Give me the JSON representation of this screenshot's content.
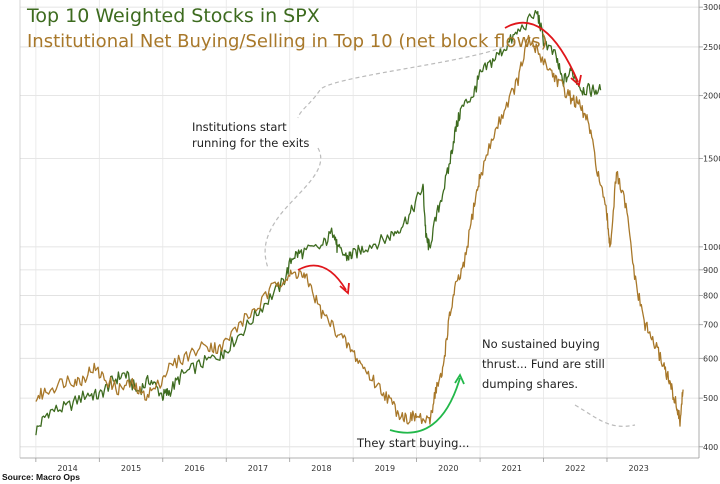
{
  "chart_data": {
    "type": "line",
    "title": "Top 10 Weighted Stocks in SPX",
    "subtitle": "Institutional Net Buying/Selling in Top 10 (net block flows)",
    "source": "Source: Macro Ops",
    "x_tick_labels": [
      "2014",
      "2015",
      "2016",
      "2017",
      "2018",
      "2019",
      "2020",
      "2021",
      "2022",
      "2023"
    ],
    "y_axis": {
      "scale": "log",
      "tick_labels": [
        "400",
        "500",
        "600",
        "700",
        "800",
        "900",
        "1000",
        "1500",
        "2000",
        "2500",
        "3000"
      ],
      "ylim": [
        380,
        3100
      ]
    },
    "series": [
      {
        "name": "Top 10 Weighted Stocks in SPX",
        "color": "#3d6b1f",
        "points": [
          [
            2014.0,
            430
          ],
          [
            2014.2,
            470
          ],
          [
            2014.5,
            480
          ],
          [
            2014.8,
            510
          ],
          [
            2015.0,
            505
          ],
          [
            2015.2,
            540
          ],
          [
            2015.4,
            560
          ],
          [
            2015.6,
            515
          ],
          [
            2015.8,
            545
          ],
          [
            2016.0,
            505
          ],
          [
            2016.1,
            515
          ],
          [
            2016.3,
            555
          ],
          [
            2016.6,
            585
          ],
          [
            2016.9,
            610
          ],
          [
            2017.0,
            625
          ],
          [
            2017.3,
            690
          ],
          [
            2017.6,
            770
          ],
          [
            2017.9,
            850
          ],
          [
            2018.05,
            960
          ],
          [
            2018.2,
            975
          ],
          [
            2018.5,
            1000
          ],
          [
            2018.7,
            1080
          ],
          [
            2018.75,
            990
          ],
          [
            2018.9,
            955
          ],
          [
            2019.0,
            965
          ],
          [
            2019.2,
            1000
          ],
          [
            2019.5,
            1035
          ],
          [
            2019.7,
            1080
          ],
          [
            2019.9,
            1160
          ],
          [
            2020.1,
            1320
          ],
          [
            2020.15,
            1040
          ],
          [
            2020.2,
            1000
          ],
          [
            2020.35,
            1200
          ],
          [
            2020.5,
            1420
          ],
          [
            2020.6,
            1680
          ],
          [
            2020.7,
            1880
          ],
          [
            2020.9,
            2020
          ],
          [
            2021.0,
            2200
          ],
          [
            2021.2,
            2350
          ],
          [
            2021.4,
            2500
          ],
          [
            2021.6,
            2680
          ],
          [
            2021.9,
            2930
          ],
          [
            2022.0,
            2580
          ],
          [
            2022.2,
            2380
          ],
          [
            2022.3,
            2130
          ],
          [
            2022.45,
            2240
          ],
          [
            2022.6,
            2060
          ],
          [
            2022.75,
            2050
          ],
          [
            2022.9,
            2050
          ]
        ]
      },
      {
        "name": "Institutional Net Buying/Selling in Top 10",
        "color": "#a8782a",
        "points": [
          [
            2014.0,
            500
          ],
          [
            2014.2,
            520
          ],
          [
            2014.5,
            545
          ],
          [
            2014.7,
            540
          ],
          [
            2014.9,
            575
          ],
          [
            2015.1,
            545
          ],
          [
            2015.3,
            520
          ],
          [
            2015.5,
            535
          ],
          [
            2015.7,
            505
          ],
          [
            2015.9,
            525
          ],
          [
            2016.1,
            575
          ],
          [
            2016.4,
            610
          ],
          [
            2016.7,
            640
          ],
          [
            2016.9,
            625
          ],
          [
            2017.2,
            700
          ],
          [
            2017.5,
            760
          ],
          [
            2017.8,
            850
          ],
          [
            2018.0,
            875
          ],
          [
            2018.15,
            890
          ],
          [
            2018.3,
            850
          ],
          [
            2018.5,
            740
          ],
          [
            2018.7,
            690
          ],
          [
            2018.9,
            640
          ],
          [
            2019.1,
            590
          ],
          [
            2019.3,
            545
          ],
          [
            2019.5,
            510
          ],
          [
            2019.7,
            470
          ],
          [
            2019.85,
            455
          ],
          [
            2020.0,
            460
          ],
          [
            2020.2,
            445
          ],
          [
            2020.3,
            520
          ],
          [
            2020.4,
            555
          ],
          [
            2020.5,
            700
          ],
          [
            2020.6,
            820
          ],
          [
            2020.75,
            920
          ],
          [
            2020.9,
            1200
          ],
          [
            2021.0,
            1380
          ],
          [
            2021.2,
            1650
          ],
          [
            2021.4,
            1900
          ],
          [
            2021.6,
            2150
          ],
          [
            2021.75,
            2580
          ],
          [
            2021.9,
            2460
          ],
          [
            2022.1,
            2250
          ],
          [
            2022.25,
            2120
          ],
          [
            2022.4,
            2000
          ],
          [
            2022.55,
            1920
          ],
          [
            2022.7,
            1780
          ],
          [
            2022.85,
            1420
          ],
          [
            2023.0,
            1150
          ],
          [
            2023.05,
            1000
          ],
          [
            2023.15,
            1400
          ],
          [
            2023.3,
            1200
          ],
          [
            2023.45,
            850
          ],
          [
            2023.6,
            700
          ],
          [
            2023.75,
            640
          ],
          [
            2023.9,
            580
          ],
          [
            2024.0,
            530
          ],
          [
            2024.1,
            480
          ],
          [
            2024.15,
            450
          ],
          [
            2024.2,
            520
          ]
        ]
      }
    ],
    "annotations": [
      {
        "lines": [
          "Institutions start",
          "running for the exits"
        ]
      },
      {
        "lines": [
          "No sustained buying",
          "thrust... Fund are still",
          "dumping shares."
        ]
      },
      {
        "lines": [
          "They start buying..."
        ]
      }
    ]
  }
}
